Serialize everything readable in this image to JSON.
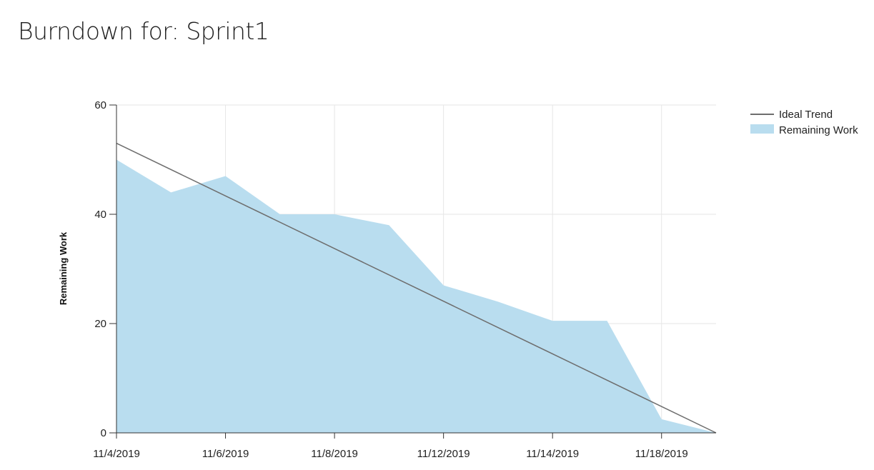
{
  "page": {
    "title": "Burndown for: Sprint1"
  },
  "colors": {
    "ideal_trend": "#6e6e6e",
    "remaining_work": "#b9ddef",
    "grid": "#e6e6e6",
    "axis": "#333333"
  },
  "chart_data": {
    "type": "area",
    "ylabel": "Remaining Work",
    "ylim": [
      0,
      60
    ],
    "y_ticks": [
      0,
      20,
      40,
      60
    ],
    "x_tick_labels": [
      "11/4/2019",
      "11/6/2019",
      "11/8/2019",
      "11/12/2019",
      "11/14/2019",
      "11/18/2019"
    ],
    "x_index_range": [
      0,
      11
    ],
    "grid": true,
    "legend_position": "top-right",
    "series": [
      {
        "name": "Ideal Trend",
        "kind": "line",
        "x_index": [
          0,
          11
        ],
        "values": [
          53,
          0
        ]
      },
      {
        "name": "Remaining Work",
        "kind": "area",
        "x_index": [
          0,
          1,
          2,
          3,
          4,
          5,
          6,
          7,
          8,
          9,
          10,
          11
        ],
        "values": [
          50,
          44,
          47,
          40,
          40,
          38,
          27,
          24,
          20.5,
          20.5,
          2.5,
          0
        ]
      }
    ]
  }
}
